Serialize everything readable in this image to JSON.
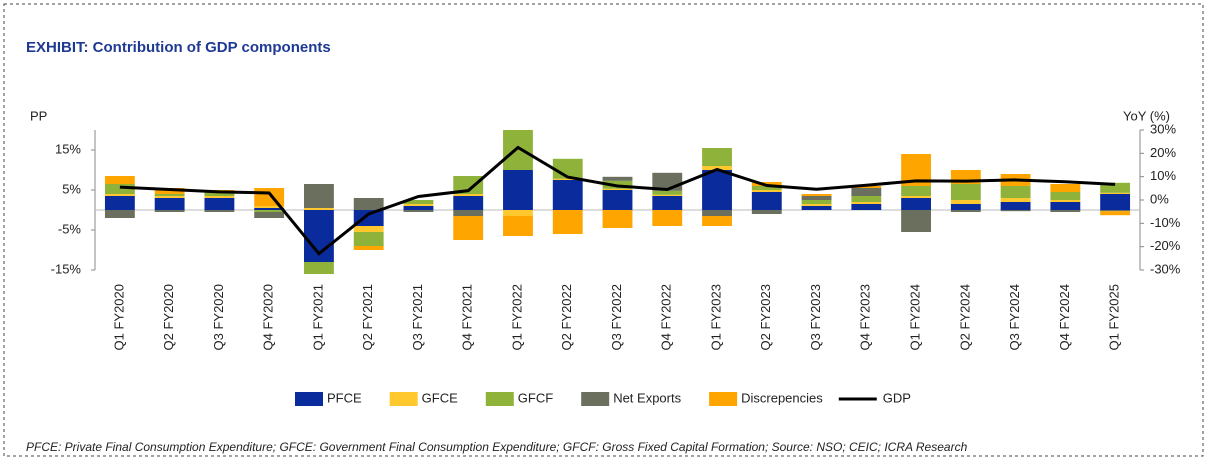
{
  "chart_data": {
    "type": "bar",
    "title": "EXHIBIT: Contribution of GDP components",
    "y_label": "PP",
    "y2_label": "YoY (%)",
    "note": "PFCE: Private Final Consumption Expenditure; GFCE: Government Final Consumption Expenditure; GFCF: Gross Fixed Capital Formation; Source: NSO; CEIC; ICRA Research",
    "categories": [
      "Q1 FY2020",
      "Q2 FY2020",
      "Q3 FY2020",
      "Q4 FY2020",
      "Q1 FY2021",
      "Q2 FY2021",
      "Q3 FY2021",
      "Q4 FY2021",
      "Q1 FY2022",
      "Q2 FY2022",
      "Q3 FY2022",
      "Q4 FY2022",
      "Q1 FY2023",
      "Q2 FY2023",
      "Q3 FY2023",
      "Q4 FY2023",
      "Q1 FY2024",
      "Q2 FY2024",
      "Q3 FY2024",
      "Q4 FY2024",
      "Q1 FY2025"
    ],
    "stacked": true,
    "series": [
      {
        "name": "PFCE",
        "color": "#0a2b9c",
        "values": [
          3.5,
          3,
          3,
          0.5,
          -13,
          -4,
          1,
          3.5,
          10,
          7.5,
          5,
          3.5,
          10,
          4.5,
          1,
          1.5,
          3,
          1.5,
          2,
          2,
          4
        ]
      },
      {
        "name": "GFCE",
        "color": "#ffc82e",
        "values": [
          0.5,
          0.5,
          0.5,
          0.5,
          0.5,
          -1.5,
          0.5,
          0.5,
          -1.5,
          0.3,
          0.3,
          0.3,
          1,
          0.5,
          0.5,
          0.5,
          0.5,
          1,
          1,
          0.5,
          0.3
        ]
      },
      {
        "name": "GFCF",
        "color": "#8fb33a",
        "values": [
          2.5,
          0.5,
          1,
          -0.5,
          -3,
          -3.5,
          1,
          4.5,
          10,
          5,
          2,
          1,
          4.5,
          1,
          1,
          1.5,
          2.5,
          4,
          3,
          2,
          2.5
        ]
      },
      {
        "name": "Net Exports",
        "color": "#6b6f5e",
        "values": [
          -2,
          -0.5,
          -0.5,
          -1.5,
          6,
          3,
          -0.5,
          -1.5,
          0,
          0,
          1,
          4.5,
          -1.5,
          -1,
          1,
          2,
          -5.5,
          -0.5,
          -0.3,
          -0.5,
          -0.3
        ]
      },
      {
        "name": "Discrepencies",
        "color": "#ffa500",
        "values": [
          2,
          1.5,
          0.5,
          4.5,
          0,
          -1,
          0,
          -6,
          -5,
          -6,
          -4.5,
          -4,
          -2.5,
          1,
          0.5,
          0.5,
          8,
          3.5,
          3,
          2,
          -1
        ]
      },
      {
        "name": "GDP",
        "type": "line",
        "axis": "y2",
        "color": "#000000",
        "values": [
          5.5,
          4.5,
          3.5,
          3,
          -23,
          -6,
          1.5,
          4,
          22.5,
          9.8,
          6,
          4.5,
          13.1,
          6.2,
          4.6,
          6.3,
          8.2,
          8.1,
          8.6,
          7.8,
          6.7
        ]
      }
    ],
    "ylim": [
      -15,
      20
    ],
    "yticks": [
      {
        "value": 15,
        "label": "15%"
      },
      {
        "value": 5,
        "label": "5%"
      },
      {
        "value": -5,
        "label": "-5%"
      },
      {
        "value": -15,
        "label": "-15%"
      }
    ],
    "y2lim": [
      -30,
      30
    ],
    "y2ticks": [
      {
        "value": 30,
        "label": "30%"
      },
      {
        "value": 20,
        "label": "20%"
      },
      {
        "value": 10,
        "label": "10%"
      },
      {
        "value": 0,
        "label": "0%"
      },
      {
        "value": -10,
        "label": "-10%"
      },
      {
        "value": -20,
        "label": "-20%"
      },
      {
        "value": -30,
        "label": "-30%"
      }
    ],
    "legend": "bottom"
  }
}
